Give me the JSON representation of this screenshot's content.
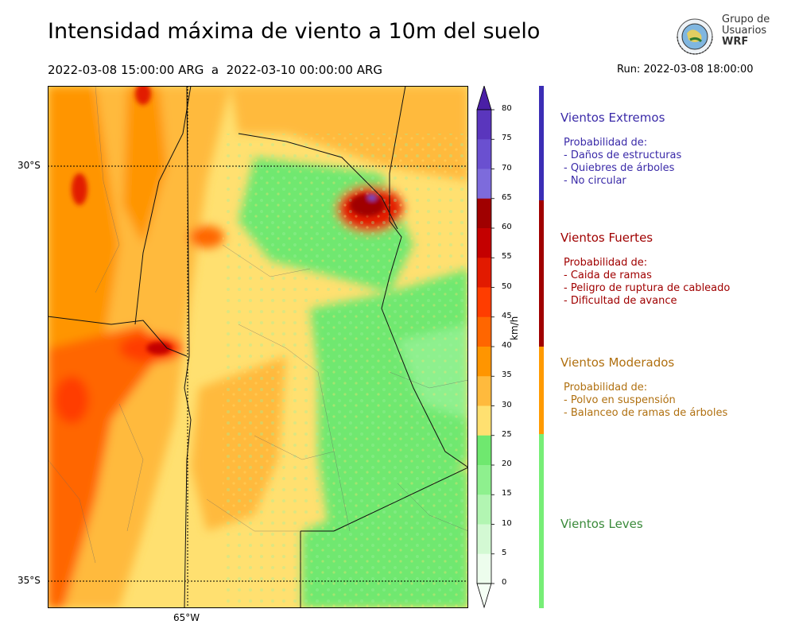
{
  "title": "Intensidad máxima de viento a 10m del suelo",
  "period": "2022-03-08 15:00:00 ARG  a  2022-03-10 00:00:00 ARG",
  "run": "Run: 2022-03-08 18:00:00",
  "logo": {
    "line1": "Grupo de",
    "line2": "Usuarios",
    "line3": "WRF"
  },
  "map": {
    "lat_labels": [
      "30°S",
      "35°S"
    ],
    "lon_labels": [
      "65°W"
    ]
  },
  "colorbar": {
    "unit": "km/h",
    "ticks": [
      "80",
      "75",
      "70",
      "65",
      "60",
      "55",
      "50",
      "45",
      "40",
      "35",
      "30",
      "25",
      "20",
      "15",
      "10",
      "5",
      "0"
    ],
    "colors": [
      "#4a1fa6",
      "#5a36bd",
      "#6a50d0",
      "#7d6bdc",
      "#a00000",
      "#c40000",
      "#e21a00",
      "#ff3d00",
      "#ff6600",
      "#ff9500",
      "#ffba3d",
      "#ffe070",
      "#6fe86f",
      "#8ef08e",
      "#b2f5b2",
      "#d3f9d3",
      "#edfded"
    ]
  },
  "categories": [
    {
      "title": "Vientos Extremos",
      "color": "#3a2aa8",
      "bar_color": "#3b2db5",
      "lines": [
        "Probabilidad de:",
        "- Daños de estructuras",
        "- Quiebres de árboles",
        "- No circular"
      ]
    },
    {
      "title": "Vientos Fuertes",
      "color": "#a00000",
      "bar_color": "#a00000",
      "lines": [
        "Probabilidad de:",
        "- Caida de ramas",
        "- Peligro de ruptura de cableado",
        "- Dificultad de avance"
      ]
    },
    {
      "title": "Vientos Moderados",
      "color": "#b07010",
      "bar_color": "#ff9a00",
      "lines": [
        "Probabilidad de:",
        "- Polvo en suspensión",
        "- Balanceo de ramas de árboles"
      ]
    },
    {
      "title": "Vientos Leves",
      "color": "#3a8a3a",
      "bar_color": "#77ee77",
      "lines": []
    }
  ]
}
